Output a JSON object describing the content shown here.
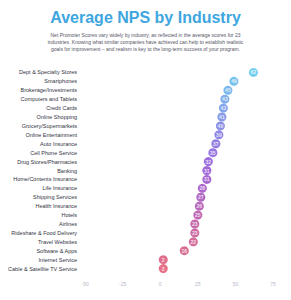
{
  "chart_data": {
    "type": "scatter",
    "orientation": "horizontal",
    "title": "Average NPS by Industry",
    "subtitle": "Net Promoter Scores vary widely by industry, as reflected in the average scores for 23\nindustries. Knowing what similar companies have achieved can help to establish realistic\ngoals for improvement – and realism is key to the long-term success of your program.",
    "categories": [
      "Dept & Specialty Stores",
      "Smartphones",
      "Brokerage/Investments",
      "Computers and Tablets",
      "Credit Cards",
      "Online Shopping",
      "Grocery/Supermarkets",
      "Online Entertainment",
      "Auto Insurance",
      "Cell Phone Service",
      "Drug Stores/Pharmacies",
      "Banking",
      "Home/Contents Insurance",
      "Life Insurance",
      "Shipping Services",
      "Health Insurance",
      "Hotels",
      "Airlines",
      "Rideshare & Food Delivery",
      "Travel Websites",
      "Software & Apps",
      "Internet Service",
      "Cable & Satellite TV Service"
    ],
    "values": [
      62,
      49,
      45,
      43,
      42,
      41,
      40,
      39,
      37,
      35,
      32,
      31,
      31,
      28,
      27,
      26,
      25,
      23,
      23,
      22,
      16,
      2,
      2
    ],
    "colors": [
      "#4fc3ec",
      "#55b2ea",
      "#5aa6e8",
      "#5f9ae6",
      "#648ee4",
      "#6a82e2",
      "#6f76e0",
      "#7469de",
      "#795ddc",
      "#7e52da",
      "#8449d6",
      "#8a44d0",
      "#9142c8",
      "#9841bf",
      "#a041b5",
      "#a842ab",
      "#b043a1",
      "#b84597",
      "#c0468d",
      "#c84883",
      "#d04a7a",
      "#d94b72",
      "#e24d6b"
    ],
    "xlim": [
      -50,
      75
    ],
    "xticks": [
      -50,
      -25,
      0,
      25,
      50,
      75
    ],
    "grid": false,
    "data_labels": true
  }
}
